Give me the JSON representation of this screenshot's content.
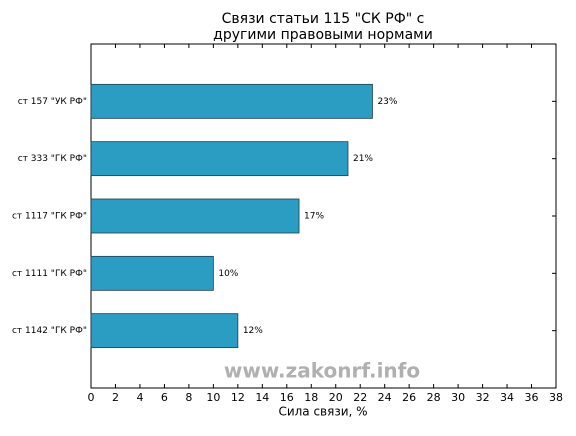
{
  "chart_data": {
    "type": "barh",
    "title": [
      "Связи статьи 115 \"СК РФ\" с",
      "другими правовыми нормами"
    ],
    "categories": [
      "ст 157 \"УК РФ\"",
      "ст 333 \"ГК РФ\"",
      "ст 1117 \"ГК РФ\"",
      "ст 1111 \"ГК РФ\"",
      "ст 1142 \"ГК РФ\""
    ],
    "values": [
      23,
      21,
      17,
      10,
      12
    ],
    "value_labels": [
      "23%",
      "21%",
      "17%",
      "10%",
      "12%"
    ],
    "color": "#2b9dc3",
    "xlabel": "Сила связи, %",
    "xlim": [
      0,
      38
    ],
    "xticks": [
      0,
      2,
      4,
      6,
      8,
      10,
      12,
      14,
      16,
      18,
      20,
      22,
      24,
      26,
      28,
      30,
      32,
      34,
      36,
      38
    ],
    "annotations": [
      "www.zakonrf.info"
    ]
  }
}
